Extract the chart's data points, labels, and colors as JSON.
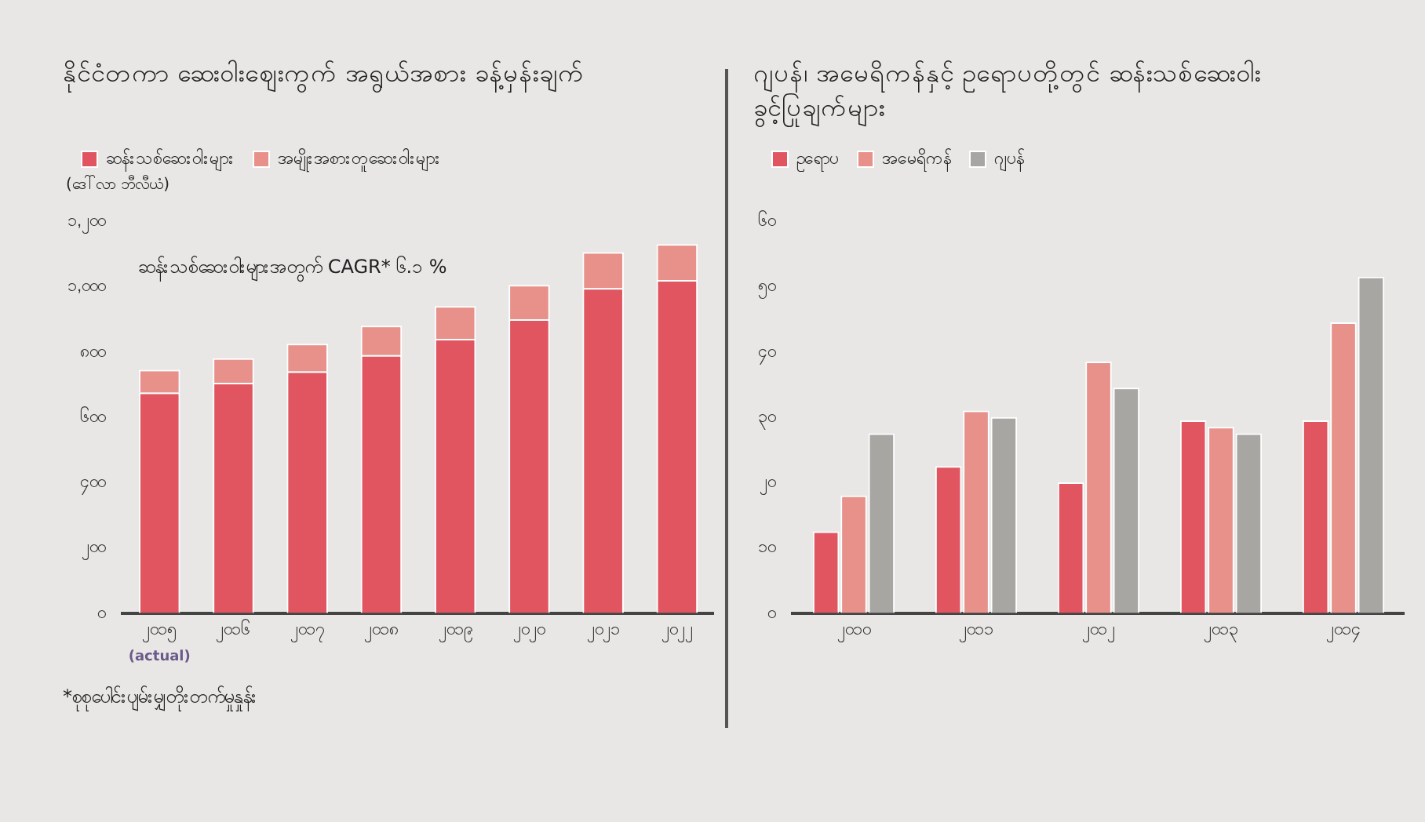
{
  "chart_data": [
    {
      "type": "bar",
      "title": "နိုင်ငံတကာ ဆေးဝါးဈေးကွက် အရွယ်အစား ခန့်မှန်းချက်",
      "ylabel": "(ဒေါ်လာ ဘီလီယံ)",
      "categories": [
        "၂၀၁၅",
        "၂၀၁၆",
        "၂၀၁၇",
        "၂၀၁၈",
        "၂၀၁၉",
        "၂၀၂၀",
        "၂၀၂၁",
        "၂၀၂၂"
      ],
      "stacked": true,
      "legend": "top left",
      "grid": false,
      "series": [
        {
          "name": "ဆန်းသစ်ဆေးဝါးများ",
          "color": "#e05560",
          "values": [
            675,
            705,
            740,
            790,
            840,
            900,
            995,
            1020
          ]
        },
        {
          "name": "အမျိုးအစားတူဆေးဝါးများ",
          "color": "#e8908a",
          "values": [
            70,
            75,
            85,
            90,
            100,
            105,
            110,
            110
          ]
        }
      ],
      "ylim": [
        0,
        1200
      ],
      "yticks": [
        {
          "value": 0,
          "label": "၀"
        },
        {
          "value": 200,
          "label": "၂၀၀"
        },
        {
          "value": 400,
          "label": "၄၀၀"
        },
        {
          "value": 600,
          "label": "၆၀၀"
        },
        {
          "value": 800,
          "label": "၈၀၀"
        },
        {
          "value": 1000,
          "label": "၁,၀၀၀"
        },
        {
          "value": 1200,
          "label": "၁,၂၀၀"
        }
      ],
      "annotations": [
        "ဆန်းသစ်ဆေးဝါးများအတွက် CAGR* ၆.၁ %",
        "(actual)",
        "*စုစုပေါင်းပျမ်းမျှတိုးတက်မှုနှုန်း"
      ]
    },
    {
      "type": "bar",
      "title": "ဂျပန်၊ အမေရိကန်နှင့် ဥရောပတို့တွင် ဆန်းသစ်ဆေးဝါး ခွင့်ပြုချက်များ",
      "categories": [
        "၂၀၁၀",
        "၂၀၁၁",
        "၂၀၁၂",
        "၂၀၁၃",
        "၂၀၁၄"
      ],
      "legend": "top left",
      "grid": false,
      "series": [
        {
          "name": "ဥရောပ",
          "color": "#e05560",
          "values": [
            12.5,
            22.5,
            20,
            29.5,
            29.5
          ]
        },
        {
          "name": "အမေရိကန်",
          "color": "#e8908a",
          "values": [
            18,
            31,
            38.5,
            28.5,
            44.5
          ]
        },
        {
          "name": "ဂျပန်",
          "color": "#a8a6a3",
          "values": [
            27.5,
            30,
            34.5,
            27.5,
            51.5
          ]
        }
      ],
      "ylim": [
        0,
        60
      ],
      "yticks": [
        {
          "value": 0,
          "label": "၀"
        },
        {
          "value": 10,
          "label": "၁၀"
        },
        {
          "value": 20,
          "label": "၂၀"
        },
        {
          "value": 30,
          "label": "၃၀"
        },
        {
          "value": 40,
          "label": "၄၀"
        },
        {
          "value": 50,
          "label": "၅၀"
        },
        {
          "value": 60,
          "label": "၆၀"
        }
      ]
    }
  ]
}
